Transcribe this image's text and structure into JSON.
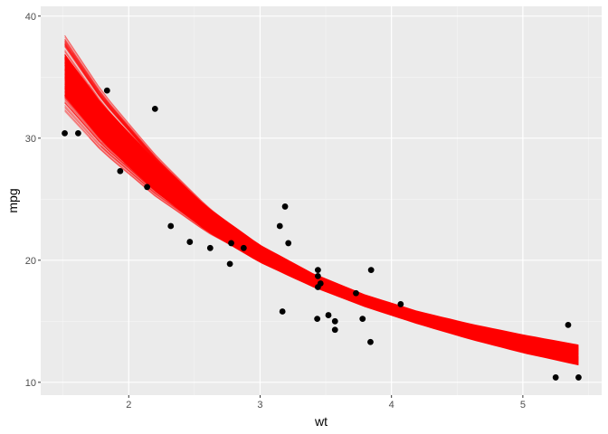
{
  "chart_data": {
    "type": "scatter",
    "xlabel": "wt",
    "ylabel": "mpg",
    "xlim": [
      1.33,
      5.6
    ],
    "ylim": [
      8.95,
      40.8
    ],
    "x_ticks": [
      2,
      3,
      4,
      5
    ],
    "x_tick_labels": [
      "2",
      "3",
      "4",
      "5"
    ],
    "y_ticks": [
      10,
      20,
      30,
      40
    ],
    "y_tick_labels": [
      "10",
      "20",
      "30",
      "40"
    ],
    "grid": true,
    "legend": "none",
    "points": [
      {
        "x": 1.513,
        "y": 30.4
      },
      {
        "x": 1.615,
        "y": 30.4
      },
      {
        "x": 1.835,
        "y": 33.9
      },
      {
        "x": 1.935,
        "y": 27.3
      },
      {
        "x": 2.14,
        "y": 26.0
      },
      {
        "x": 2.2,
        "y": 32.4
      },
      {
        "x": 2.32,
        "y": 22.8
      },
      {
        "x": 2.465,
        "y": 21.5
      },
      {
        "x": 2.62,
        "y": 21.0
      },
      {
        "x": 2.77,
        "y": 19.7
      },
      {
        "x": 2.78,
        "y": 21.4
      },
      {
        "x": 2.875,
        "y": 21.0
      },
      {
        "x": 3.15,
        "y": 22.8
      },
      {
        "x": 3.17,
        "y": 15.8
      },
      {
        "x": 3.19,
        "y": 24.4
      },
      {
        "x": 3.215,
        "y": 21.4
      },
      {
        "x": 3.435,
        "y": 15.2
      },
      {
        "x": 3.44,
        "y": 18.7
      },
      {
        "x": 3.44,
        "y": 19.2
      },
      {
        "x": 3.44,
        "y": 17.8
      },
      {
        "x": 3.46,
        "y": 18.1
      },
      {
        "x": 3.52,
        "y": 15.5
      },
      {
        "x": 3.57,
        "y": 14.3
      },
      {
        "x": 3.57,
        "y": 15.0
      },
      {
        "x": 3.73,
        "y": 17.3
      },
      {
        "x": 3.78,
        "y": 15.2
      },
      {
        "x": 3.84,
        "y": 13.3
      },
      {
        "x": 3.845,
        "y": 19.2
      },
      {
        "x": 4.07,
        "y": 16.4
      },
      {
        "x": 5.25,
        "y": 10.4
      },
      {
        "x": 5.345,
        "y": 14.7
      },
      {
        "x": 5.424,
        "y": 10.4
      }
    ],
    "fit_curves": {
      "color": "#ff0000",
      "x_range": [
        1.513,
        5.424
      ],
      "center": {
        "x": [
          1.513,
          1.8,
          2.2,
          2.6,
          3.0,
          3.4,
          3.8,
          4.2,
          4.6,
          5.0,
          5.424
        ],
        "y": [
          35.0,
          31.0,
          26.8,
          23.3,
          20.5,
          18.4,
          16.7,
          15.3,
          14.1,
          13.1,
          12.1
        ]
      },
      "lower": {
        "x": [
          1.513,
          1.8,
          2.2,
          2.6,
          3.0,
          3.4,
          3.8,
          4.2,
          4.6,
          5.0,
          5.424
        ],
        "y": [
          32.2,
          28.6,
          24.7,
          21.5,
          19.2,
          17.3,
          15.7,
          14.3,
          13.0,
          11.8,
          10.8
        ]
      },
      "upper": {
        "x": [
          1.513,
          1.8,
          2.2,
          2.6,
          3.0,
          3.4,
          3.8,
          4.2,
          4.6,
          5.0,
          5.424
        ],
        "y": [
          38.5,
          34.2,
          29.4,
          25.2,
          21.9,
          19.4,
          17.6,
          16.3,
          15.4,
          14.6,
          13.9
        ]
      }
    }
  }
}
